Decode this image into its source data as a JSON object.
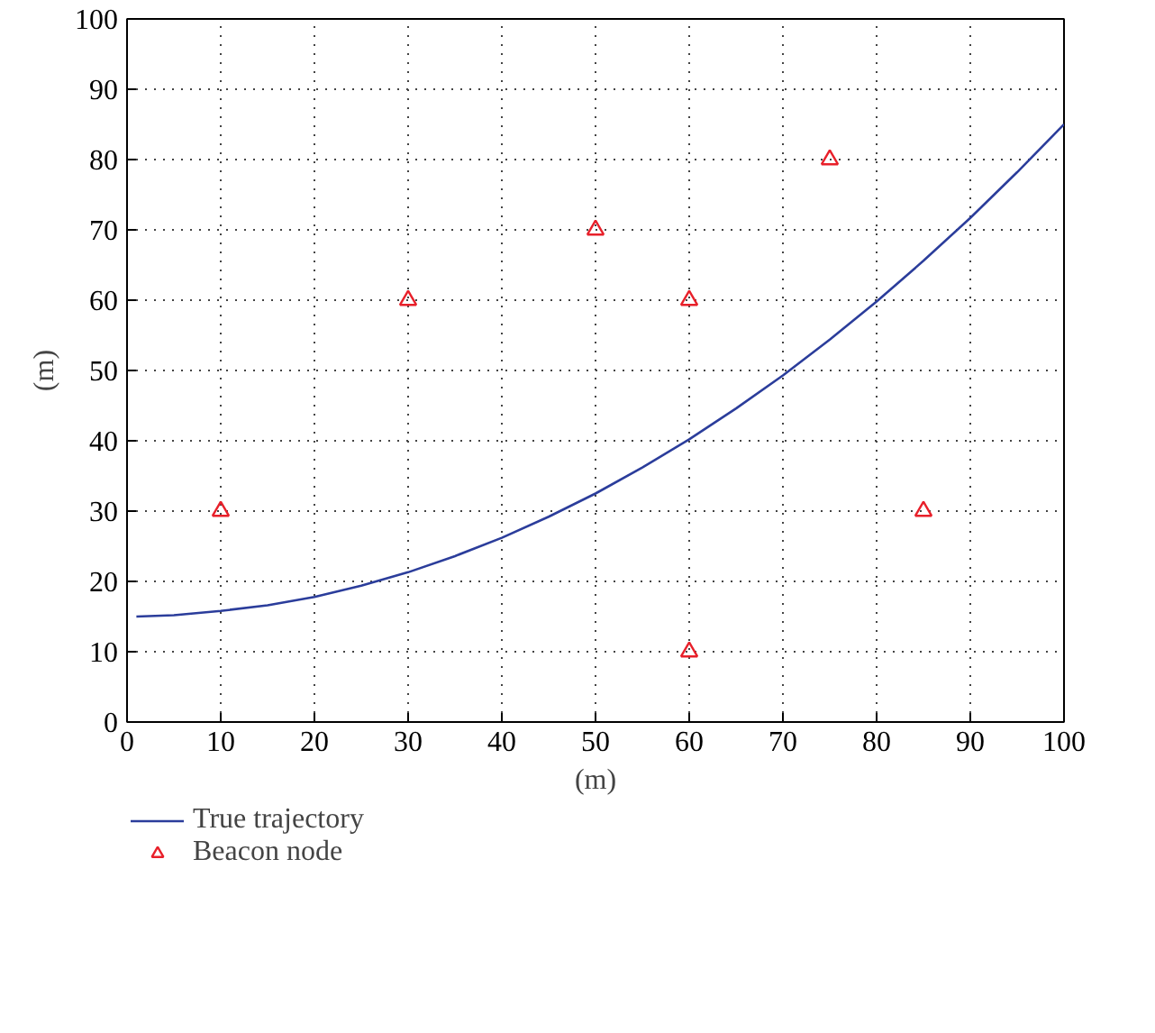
{
  "chart_data": {
    "type": "line",
    "xlabel": "(m)",
    "ylabel": "(m)",
    "xlim": [
      0,
      100
    ],
    "ylim": [
      0,
      100
    ],
    "xticks": [
      0,
      10,
      20,
      30,
      40,
      50,
      60,
      70,
      80,
      90,
      100
    ],
    "yticks": [
      0,
      10,
      20,
      30,
      40,
      50,
      60,
      70,
      80,
      90,
      100
    ],
    "grid": true,
    "legend": "bottom",
    "series": [
      {
        "name": "True trajectory",
        "marker": "none",
        "color": "#2b3d9b",
        "x": [
          1,
          5,
          10,
          15,
          20,
          25,
          30,
          35,
          40,
          45,
          50,
          55,
          60,
          65,
          70,
          75,
          80,
          85,
          90,
          95,
          100
        ],
        "values": [
          15,
          15.2,
          15.8,
          16.6,
          17.8,
          19.4,
          21.3,
          23.6,
          26.2,
          29.2,
          32.5,
          36.2,
          40.2,
          44.6,
          49.3,
          54.4,
          59.8,
          65.6,
          71.7,
          78.2,
          85
        ]
      },
      {
        "name": "Beacon node",
        "type": "scatter",
        "marker": "triangle",
        "color": "#e8202a",
        "x": [
          10,
          30,
          50,
          60,
          60,
          75,
          85
        ],
        "values": [
          30,
          60,
          70,
          60,
          10,
          80,
          30
        ]
      }
    ]
  }
}
